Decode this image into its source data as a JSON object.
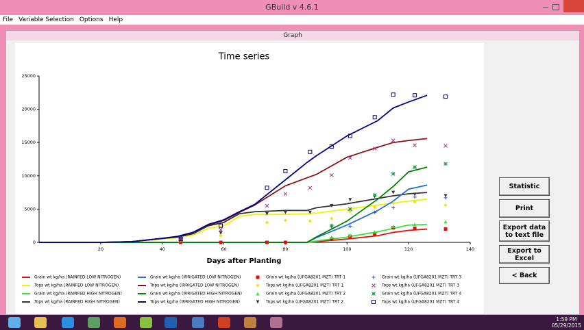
{
  "window": {
    "title": "GBuild v 4.6.1",
    "menu": [
      "File",
      "Variable Selection",
      "Options",
      "Help"
    ],
    "panel_title": "Graph",
    "buttons": [
      "Statistic",
      "Print",
      "Export data to text file",
      "Export to Excel",
      "< Back"
    ],
    "clock": {
      "time": "1:59 PM",
      "date": "05/29/2015"
    }
  },
  "chart_data": {
    "type": "line",
    "title": "Time series",
    "x_label": "Days after Planting",
    "xlim": [
      0,
      140
    ],
    "xticks": [
      20,
      40,
      60,
      80,
      100,
      120,
      140
    ],
    "ylim": [
      0,
      25000
    ],
    "yticks": [
      0,
      5000,
      10000,
      15000,
      20000,
      25000
    ],
    "series": [
      {
        "name": "Grain wt kg/ha (RAINFED LOW NITROGEN)",
        "color": "#e01010",
        "x": [
          0,
          20,
          30,
          40,
          45,
          50,
          55,
          60,
          65,
          70,
          80,
          87,
          90,
          100,
          110,
          115,
          120,
          126
        ],
        "values": [
          0,
          0,
          0,
          0,
          0,
          0,
          0,
          0,
          0,
          0,
          0,
          0,
          100,
          500,
          1000,
          1500,
          1800,
          2000
        ]
      },
      {
        "name": "Tops wt kg/ha (RAINFED LOW NITROGEN)",
        "color": "#f2f200",
        "x": [
          0,
          20,
          30,
          40,
          45,
          50,
          55,
          60,
          65,
          70,
          80,
          87,
          90,
          100,
          110,
          115,
          120,
          126
        ],
        "values": [
          0,
          0,
          100,
          500,
          700,
          1100,
          2100,
          2500,
          3900,
          4200,
          4200,
          4300,
          4400,
          5000,
          5600,
          5900,
          6200,
          6500
        ]
      },
      {
        "name": "Grain wt kg/ha (RAINFED HIGH NITROGEN)",
        "color": "#3be03b",
        "x": [
          0,
          20,
          30,
          40,
          45,
          50,
          55,
          60,
          65,
          70,
          80,
          87,
          90,
          100,
          110,
          115,
          120,
          126
        ],
        "values": [
          0,
          0,
          0,
          0,
          0,
          0,
          0,
          0,
          0,
          0,
          0,
          0,
          200,
          800,
          1600,
          2100,
          2600,
          2700
        ]
      },
      {
        "name": "Tops wt kg/ha (RAINFED HIGH NITROGEN)",
        "color": "#333333",
        "x": [
          0,
          20,
          30,
          40,
          45,
          50,
          55,
          60,
          65,
          70,
          80,
          87,
          90,
          100,
          110,
          115,
          120,
          126
        ],
        "values": [
          0,
          0,
          100,
          600,
          800,
          1300,
          2500,
          3000,
          4300,
          4600,
          4800,
          4800,
          5200,
          5800,
          6600,
          7000,
          7300,
          7500
        ]
      },
      {
        "name": "Grain wt kg/ha (IRRIGATED LOW NITROGEN)",
        "color": "#1e6fd9",
        "x": [
          0,
          20,
          30,
          40,
          45,
          50,
          55,
          60,
          65,
          70,
          80,
          87,
          90,
          100,
          110,
          115,
          120,
          126
        ],
        "values": [
          0,
          0,
          0,
          0,
          0,
          0,
          0,
          0,
          0,
          0,
          0,
          0,
          700,
          2600,
          4800,
          6200,
          8000,
          8600
        ]
      },
      {
        "name": "Tops wt kg/ha (IRRIGATED LOW NITROGEN)",
        "color": "#8b1010",
        "x": [
          0,
          20,
          30,
          40,
          45,
          50,
          55,
          60,
          65,
          70,
          80,
          87,
          90,
          100,
          110,
          115,
          120,
          126
        ],
        "values": [
          0,
          0,
          100,
          600,
          900,
          1500,
          2600,
          3300,
          4500,
          5600,
          8500,
          9700,
          10200,
          12800,
          14300,
          15000,
          15300,
          15600
        ]
      },
      {
        "name": "Grain wt kg/ha (IRRIGATED HIGH NITROGEN)",
        "color": "#008000",
        "x": [
          0,
          20,
          30,
          40,
          45,
          50,
          55,
          60,
          65,
          70,
          80,
          87,
          90,
          100,
          110,
          115,
          120,
          126
        ],
        "values": [
          0,
          0,
          0,
          0,
          0,
          0,
          0,
          0,
          0,
          0,
          0,
          0,
          800,
          3200,
          6500,
          8400,
          10600,
          11300
        ]
      },
      {
        "name": "Tops wt kg/ha (IRRIGATED HIGH NITROGEN)",
        "color": "#000080",
        "x": [
          0,
          20,
          30,
          40,
          45,
          50,
          55,
          60,
          65,
          70,
          80,
          87,
          90,
          100,
          110,
          115,
          120,
          126
        ],
        "values": [
          0,
          0,
          100,
          600,
          900,
          1500,
          2700,
          3400,
          4600,
          5700,
          9400,
          12000,
          13000,
          16000,
          18300,
          20200,
          21100,
          22100
        ]
      },
      {
        "name": "Grain wt kg/ha (UFGA8201 MZT) TRT 1",
        "color": "#e01010",
        "marker": "square",
        "x": [
          46,
          59,
          74,
          80,
          88,
          95,
          101,
          109,
          115,
          122,
          132
        ],
        "values": [
          0,
          0,
          0,
          0,
          null,
          500,
          900,
          1200,
          2200,
          2100,
          2000
        ]
      },
      {
        "name": "Tops wt kg/ha (UFGA8201 MZT) TRT 1",
        "color": "#f2e000",
        "marker": "diamond",
        "x": [
          46,
          59,
          74,
          80,
          88,
          95,
          101,
          109,
          115,
          122,
          132
        ],
        "values": [
          300,
          1000,
          3000,
          3300,
          3200,
          3600,
          4600,
          5300,
          5900,
          6100,
          5600
        ]
      },
      {
        "name": "Grain wt kg/ha (UFGA8201 MZT) TRT 2",
        "color": "#3be03b",
        "marker": "triangle",
        "x": [
          46,
          59,
          74,
          80,
          88,
          95,
          101,
          109,
          115,
          122,
          132
        ],
        "values": [
          null,
          null,
          null,
          null,
          null,
          800,
          1100,
          1600,
          2400,
          2700,
          3100
        ]
      },
      {
        "name": "Tops wt kg/ha (UFGA8201 MZT) TRT 2",
        "color": "#333333",
        "marker": "triangle-down",
        "x": [
          46,
          59,
          74,
          80,
          88,
          95,
          101,
          109,
          115,
          122,
          132
        ],
        "values": [
          400,
          1400,
          4300,
          4500,
          4500,
          5500,
          6400,
          6900,
          7500,
          7200,
          7000
        ]
      },
      {
        "name": "Grain wt kg/ha (UFGA8201 MZT) TRT 3",
        "color": "#3050c0",
        "marker": "plus",
        "x": [
          46,
          59,
          74,
          80,
          88,
          95,
          101,
          109,
          115,
          122,
          132
        ],
        "values": [
          null,
          null,
          null,
          null,
          null,
          2300,
          2400,
          4500,
          5200,
          6800,
          6700
        ]
      },
      {
        "name": "Tops wt kg/ha (UFGA8201 MZT) TRT 3",
        "color": "#a03070",
        "marker": "cross",
        "x": [
          46,
          59,
          74,
          80,
          88,
          95,
          101,
          109,
          115,
          122,
          132
        ],
        "values": [
          500,
          1900,
          5500,
          7300,
          8200,
          10100,
          12700,
          14100,
          15300,
          14600,
          14500
        ]
      },
      {
        "name": "Grain wt kg/ha (UFGA8201 MZT) TRT 4",
        "color": "#18a048",
        "marker": "star",
        "x": [
          46,
          59,
          74,
          80,
          88,
          95,
          101,
          109,
          115,
          122,
          132
        ],
        "values": [
          null,
          null,
          null,
          null,
          null,
          2500,
          5000,
          7100,
          10300,
          11300,
          11800
        ]
      },
      {
        "name": "Tops wt kg/ha (UFGA8201 MZT) TRT 4",
        "color": "#000080",
        "marker": "square-open",
        "x": [
          46,
          59,
          74,
          80,
          88,
          95,
          101,
          109,
          115,
          122,
          132
        ],
        "values": [
          500,
          2500,
          8200,
          10700,
          13600,
          14400,
          16000,
          18800,
          22200,
          22100,
          21900
        ]
      }
    ]
  }
}
